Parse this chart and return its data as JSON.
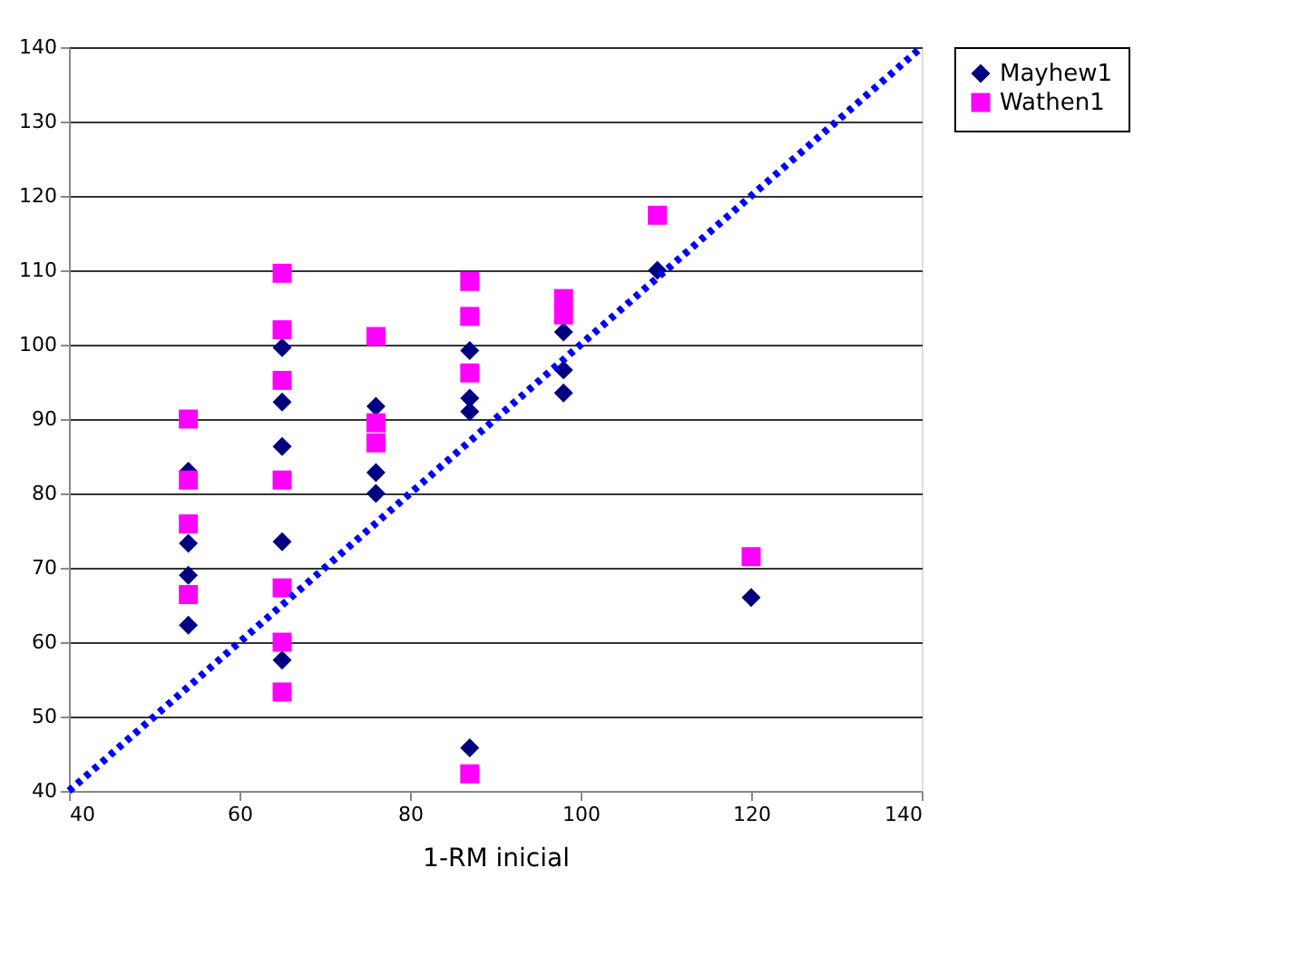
{
  "chart_data": {
    "type": "scatter",
    "xlabel": "1-RM inicial",
    "xlim": [
      40,
      140
    ],
    "xticks": [
      40,
      60,
      80,
      100,
      120,
      140
    ],
    "ylim": [
      40,
      140
    ],
    "yticks": [
      40,
      50,
      60,
      70,
      80,
      90,
      100,
      110,
      120,
      130,
      140
    ],
    "grid": "y",
    "legend": "right",
    "series": [
      {
        "name": "Mayhew1",
        "color": "#000080",
        "marker": "diamond",
        "x": [
          54,
          54,
          54,
          54,
          65,
          65,
          65,
          65,
          65,
          76,
          76,
          76,
          87,
          87,
          87,
          87,
          98,
          98,
          98,
          109,
          120
        ],
        "values": [
          83,
          73.3,
          69,
          62.3,
          99.6,
          92.3,
          86.3,
          73.5,
          57.6,
          91.7,
          82.8,
          80,
          99.2,
          92.8,
          91,
          45.8,
          101.7,
          96.6,
          93.5,
          110,
          66
        ]
      },
      {
        "name": "Wathen1",
        "color": "#ff00ff",
        "marker": "square",
        "x": [
          54,
          54,
          54,
          54,
          65,
          65,
          65,
          65,
          65,
          65,
          65,
          76,
          76,
          76,
          87,
          87,
          87,
          87,
          98,
          98,
          109,
          120
        ],
        "values": [
          90,
          81.8,
          75.9,
          66.4,
          109.6,
          102,
          95.2,
          81.8,
          67.3,
          60,
          53.3,
          101.1,
          89.5,
          86.8,
          108.5,
          103.8,
          96.2,
          42.3,
          106.2,
          104,
          117.4,
          71.5
        ]
      },
      {
        "type": "line",
        "color": "#0000ff",
        "line_style": "dotted",
        "marker": "none",
        "x": [
          40,
          140
        ],
        "values": [
          40,
          140
        ]
      }
    ]
  }
}
